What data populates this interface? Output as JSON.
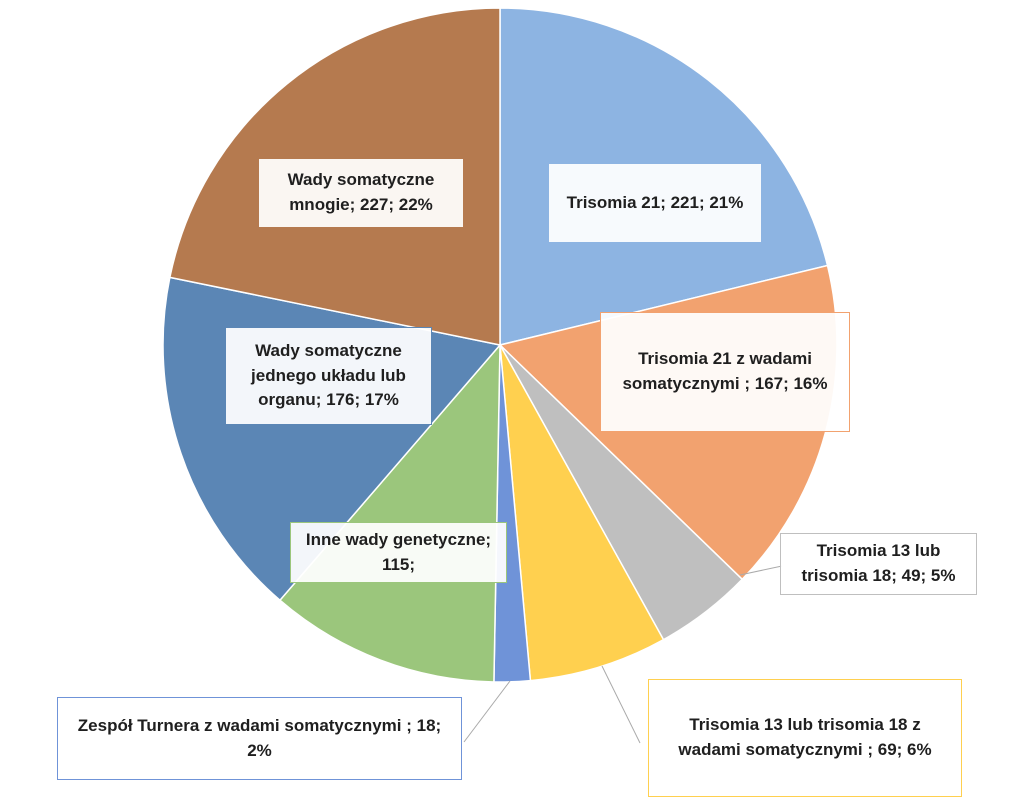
{
  "chart_data": {
    "type": "pie",
    "values": [
      221,
      167,
      49,
      69,
      18,
      115,
      176,
      227
    ],
    "value_labels": [
      "Trisomia 21; 221; 21%",
      "Trisomia 21 z wadami somatycznymi ; 167; 16%",
      "Trisomia 13 lub trisomia 18; 49; 5%",
      "Trisomia 13 lub trisomia 18 z wadami somatycznymi ; 69; 6%",
      "Zespół Turnera z wadami somatycznymi ; 18; 2%",
      "Inne wady genetyczne; 115;",
      "Wady somatyczne jednego układu lub organu; 176; 17%",
      "Wady somatyczne mnogie; 227; 22%"
    ],
    "colors": [
      "#8db4e2",
      "#f2a26f",
      "#bfbfbf",
      "#ffd04f",
      "#6f93d8",
      "#9bc67c",
      "#5b86b5",
      "#b57a4f"
    ]
  }
}
